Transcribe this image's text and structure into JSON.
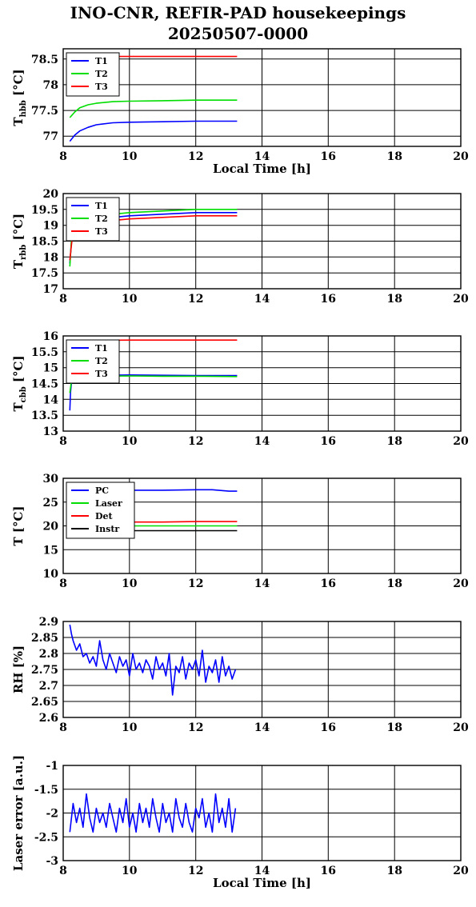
{
  "header": {
    "title": "INO-CNR, REFIR-PAD housekeepings",
    "subtitle": "20250507-0000"
  },
  "chart_data": [
    {
      "type": "line",
      "ylabel_main": "T",
      "ylabel_sub": "hbb",
      "ylabel_unit": " [°C]",
      "xlabel": "Local Time [h]",
      "xlim": [
        8,
        20
      ],
      "xticks": [
        8,
        10,
        12,
        14,
        16,
        18,
        20
      ],
      "ylim": [
        76.8,
        78.7
      ],
      "yticks": [
        77,
        77.5,
        78,
        78.5
      ],
      "ytick_labels": [
        "77",
        "77.5",
        "78",
        "78.5"
      ],
      "grid": true,
      "legend": "top-left",
      "series": [
        {
          "name": "T1",
          "color": "#0000ff",
          "x": [
            8.2,
            8.35,
            8.5,
            8.75,
            9.0,
            9.5,
            10,
            11,
            12,
            13.25
          ],
          "y": [
            76.9,
            77.02,
            77.1,
            77.17,
            77.22,
            77.26,
            77.27,
            77.28,
            77.29,
            77.29
          ]
        },
        {
          "name": "T2",
          "color": "#00dd00",
          "x": [
            8.2,
            8.35,
            8.5,
            8.75,
            9.0,
            9.5,
            10,
            11,
            12,
            13.25
          ],
          "y": [
            77.36,
            77.47,
            77.55,
            77.61,
            77.64,
            77.67,
            77.68,
            77.69,
            77.7,
            77.7
          ]
        },
        {
          "name": "T3",
          "color": "#ff0000",
          "x": [
            9.0,
            10,
            11,
            12,
            13.25
          ],
          "y": [
            78.55,
            78.55,
            78.55,
            78.55,
            78.55
          ]
        }
      ]
    },
    {
      "type": "line",
      "ylabel_main": "T",
      "ylabel_sub": "rbb",
      "ylabel_unit": " [°C]",
      "xlabel": "",
      "xlim": [
        8,
        20
      ],
      "xticks": [
        8,
        10,
        12,
        14,
        16,
        18,
        20
      ],
      "ylim": [
        17,
        20
      ],
      "yticks": [
        17,
        17.5,
        18,
        18.5,
        19,
        19.5,
        20
      ],
      "ytick_labels": [
        "17",
        "17.5",
        "18",
        "18.5",
        "19",
        "19.5",
        "20"
      ],
      "grid": true,
      "legend": "top-left",
      "series": [
        {
          "name": "T1",
          "color": "#0000ff",
          "x": [
            8.2,
            8.25,
            8.3,
            8.5,
            9.0,
            10,
            11,
            12,
            13.25
          ],
          "y": [
            17.8,
            18.5,
            18.9,
            19.1,
            19.2,
            19.3,
            19.35,
            19.4,
            19.4
          ]
        },
        {
          "name": "T2",
          "color": "#00dd00",
          "x": [
            8.2,
            8.25,
            8.3,
            8.5,
            9.0,
            10,
            11,
            12,
            13.25
          ],
          "y": [
            17.7,
            18.6,
            19.0,
            19.2,
            19.3,
            19.4,
            19.45,
            19.5,
            19.5
          ]
        },
        {
          "name": "T3",
          "color": "#ff0000",
          "x": [
            8.2,
            8.25,
            8.3,
            8.5,
            9.0,
            10,
            11,
            12,
            13.25
          ],
          "y": [
            17.9,
            18.4,
            18.8,
            19.0,
            19.1,
            19.2,
            19.25,
            19.3,
            19.3
          ]
        }
      ]
    },
    {
      "type": "line",
      "ylabel_main": "T",
      "ylabel_sub": "cbb",
      "ylabel_unit": " [°C]",
      "xlabel": "",
      "xlim": [
        8,
        20
      ],
      "xticks": [
        8,
        10,
        12,
        14,
        16,
        18,
        20
      ],
      "ylim": [
        13,
        16
      ],
      "yticks": [
        13,
        13.5,
        14,
        14.5,
        15,
        15.5,
        16
      ],
      "ytick_labels": [
        "13",
        "13.5",
        "14",
        "14.5",
        "15",
        "15.5",
        "16"
      ],
      "grid": true,
      "legend": "top-left",
      "series": [
        {
          "name": "T1",
          "color": "#0000ff",
          "x": [
            8.2,
            8.22,
            8.25,
            8.3,
            8.5,
            10,
            11,
            12,
            13.25
          ],
          "y": [
            13.65,
            14.2,
            14.55,
            14.7,
            14.75,
            14.77,
            14.76,
            14.75,
            14.75
          ]
        },
        {
          "name": "T2",
          "color": "#00dd00",
          "x": [
            8.2,
            8.25,
            8.3,
            8.5,
            10,
            11,
            12,
            13.25
          ],
          "y": [
            14.2,
            14.6,
            14.7,
            14.72,
            14.74,
            14.73,
            14.73,
            14.72
          ]
        },
        {
          "name": "T3",
          "color": "#ff0000",
          "x": [
            8.2,
            8.25,
            8.5,
            10,
            11,
            12,
            13.25
          ],
          "y": [
            15.85,
            15.86,
            15.86,
            15.87,
            15.87,
            15.87,
            15.87
          ]
        }
      ]
    },
    {
      "type": "line",
      "ylabel_main": "T [°C]",
      "ylabel_sub": "",
      "ylabel_unit": "",
      "xlabel": "",
      "xlim": [
        8,
        20
      ],
      "xticks": [
        8,
        10,
        12,
        14,
        16,
        18,
        20
      ],
      "ylim": [
        10,
        30
      ],
      "yticks": [
        10,
        15,
        20,
        25,
        30
      ],
      "ytick_labels": [
        "10",
        "15",
        "20",
        "25",
        "30"
      ],
      "grid": true,
      "legend": "top-left",
      "series": [
        {
          "name": "PC",
          "color": "#0000ff",
          "x": [
            9.0,
            10,
            11,
            12,
            12.5,
            13.0,
            13.25
          ],
          "y": [
            27.4,
            27.5,
            27.5,
            27.6,
            27.6,
            27.3,
            27.3
          ]
        },
        {
          "name": "Laser",
          "color": "#00dd00",
          "x": [
            9.0,
            10,
            11,
            12,
            13.25
          ],
          "y": [
            20.0,
            20.0,
            20.0,
            20.0,
            20.0
          ]
        },
        {
          "name": "Det",
          "color": "#ff0000",
          "x": [
            9.0,
            10,
            11,
            12,
            13.25
          ],
          "y": [
            20.8,
            20.8,
            20.8,
            20.9,
            20.9
          ]
        },
        {
          "name": "Instr",
          "color": "#000000",
          "x": [
            9.0,
            10,
            11,
            12,
            13.25
          ],
          "y": [
            19.0,
            19.0,
            19.0,
            19.0,
            19.0
          ]
        }
      ]
    },
    {
      "type": "line",
      "ylabel_main": "RH [%]",
      "ylabel_sub": "",
      "ylabel_unit": "",
      "xlabel": "",
      "xlim": [
        8,
        20
      ],
      "xticks": [
        8,
        10,
        12,
        14,
        16,
        18,
        20
      ],
      "ylim": [
        2.6,
        2.9
      ],
      "yticks": [
        2.6,
        2.65,
        2.7,
        2.75,
        2.8,
        2.85,
        2.9
      ],
      "ytick_labels": [
        "2.6",
        "2.65",
        "2.7",
        "2.75",
        "2.8",
        "2.85",
        "2.9"
      ],
      "grid": true,
      "legend": "none",
      "series": [
        {
          "name": "",
          "color": "#0000ff",
          "x": [
            8.2,
            8.25,
            8.3,
            8.4,
            8.5,
            8.6,
            8.7,
            8.8,
            8.9,
            9.0,
            9.1,
            9.2,
            9.3,
            9.4,
            9.5,
            9.6,
            9.7,
            9.8,
            9.9,
            10.0,
            10.1,
            10.2,
            10.3,
            10.4,
            10.5,
            10.6,
            10.7,
            10.8,
            10.9,
            11.0,
            11.1,
            11.2,
            11.3,
            11.4,
            11.5,
            11.6,
            11.7,
            11.8,
            11.9,
            12.0,
            12.1,
            12.2,
            12.3,
            12.4,
            12.5,
            12.6,
            12.7,
            12.8,
            12.9,
            13.0,
            13.1,
            13.2
          ],
          "y": [
            2.89,
            2.86,
            2.84,
            2.81,
            2.83,
            2.79,
            2.8,
            2.77,
            2.79,
            2.76,
            2.84,
            2.78,
            2.75,
            2.8,
            2.77,
            2.74,
            2.79,
            2.76,
            2.78,
            2.73,
            2.8,
            2.75,
            2.77,
            2.74,
            2.78,
            2.76,
            2.72,
            2.79,
            2.75,
            2.77,
            2.73,
            2.8,
            2.67,
            2.76,
            2.74,
            2.79,
            2.72,
            2.77,
            2.75,
            2.78,
            2.73,
            2.81,
            2.71,
            2.76,
            2.74,
            2.78,
            2.71,
            2.79,
            2.73,
            2.76,
            2.72,
            2.75
          ]
        }
      ]
    },
    {
      "type": "line",
      "ylabel_main": "Laser error [a.u.]",
      "ylabel_sub": "",
      "ylabel_unit": "",
      "xlabel": "Local Time [h]",
      "xlim": [
        8,
        20
      ],
      "xticks": [
        8,
        10,
        12,
        14,
        16,
        18,
        20
      ],
      "ylim": [
        -3,
        -1
      ],
      "yticks": [
        -3,
        -2.5,
        -2,
        -1.5,
        -1
      ],
      "ytick_labels": [
        "-3",
        "-2.5",
        "-2",
        "-1.5",
        "-1"
      ],
      "grid": true,
      "legend": "none",
      "series": [
        {
          "name": "",
          "color": "#0000ff",
          "x": [
            8.2,
            8.3,
            8.4,
            8.5,
            8.6,
            8.7,
            8.8,
            8.9,
            9.0,
            9.1,
            9.2,
            9.3,
            9.4,
            9.5,
            9.6,
            9.7,
            9.8,
            9.9,
            10.0,
            10.1,
            10.2,
            10.3,
            10.4,
            10.5,
            10.6,
            10.7,
            10.8,
            10.9,
            11.0,
            11.1,
            11.2,
            11.3,
            11.4,
            11.5,
            11.6,
            11.7,
            11.8,
            11.9,
            12.0,
            12.1,
            12.2,
            12.3,
            12.4,
            12.5,
            12.6,
            12.7,
            12.8,
            12.9,
            13.0,
            13.1,
            13.2
          ],
          "y": [
            -2.4,
            -1.8,
            -2.2,
            -1.9,
            -2.3,
            -1.6,
            -2.1,
            -2.4,
            -1.9,
            -2.2,
            -2.0,
            -2.3,
            -1.8,
            -2.1,
            -2.4,
            -1.9,
            -2.2,
            -1.7,
            -2.3,
            -2.0,
            -2.4,
            -1.8,
            -2.2,
            -1.9,
            -2.3,
            -1.7,
            -2.1,
            -2.4,
            -1.8,
            -2.2,
            -2.0,
            -2.4,
            -1.7,
            -2.1,
            -2.3,
            -1.8,
            -2.2,
            -2.4,
            -1.9,
            -2.1,
            -1.7,
            -2.3,
            -2.0,
            -2.4,
            -1.6,
            -2.2,
            -1.9,
            -2.3,
            -1.7,
            -2.4,
            -1.9
          ]
        }
      ]
    }
  ]
}
